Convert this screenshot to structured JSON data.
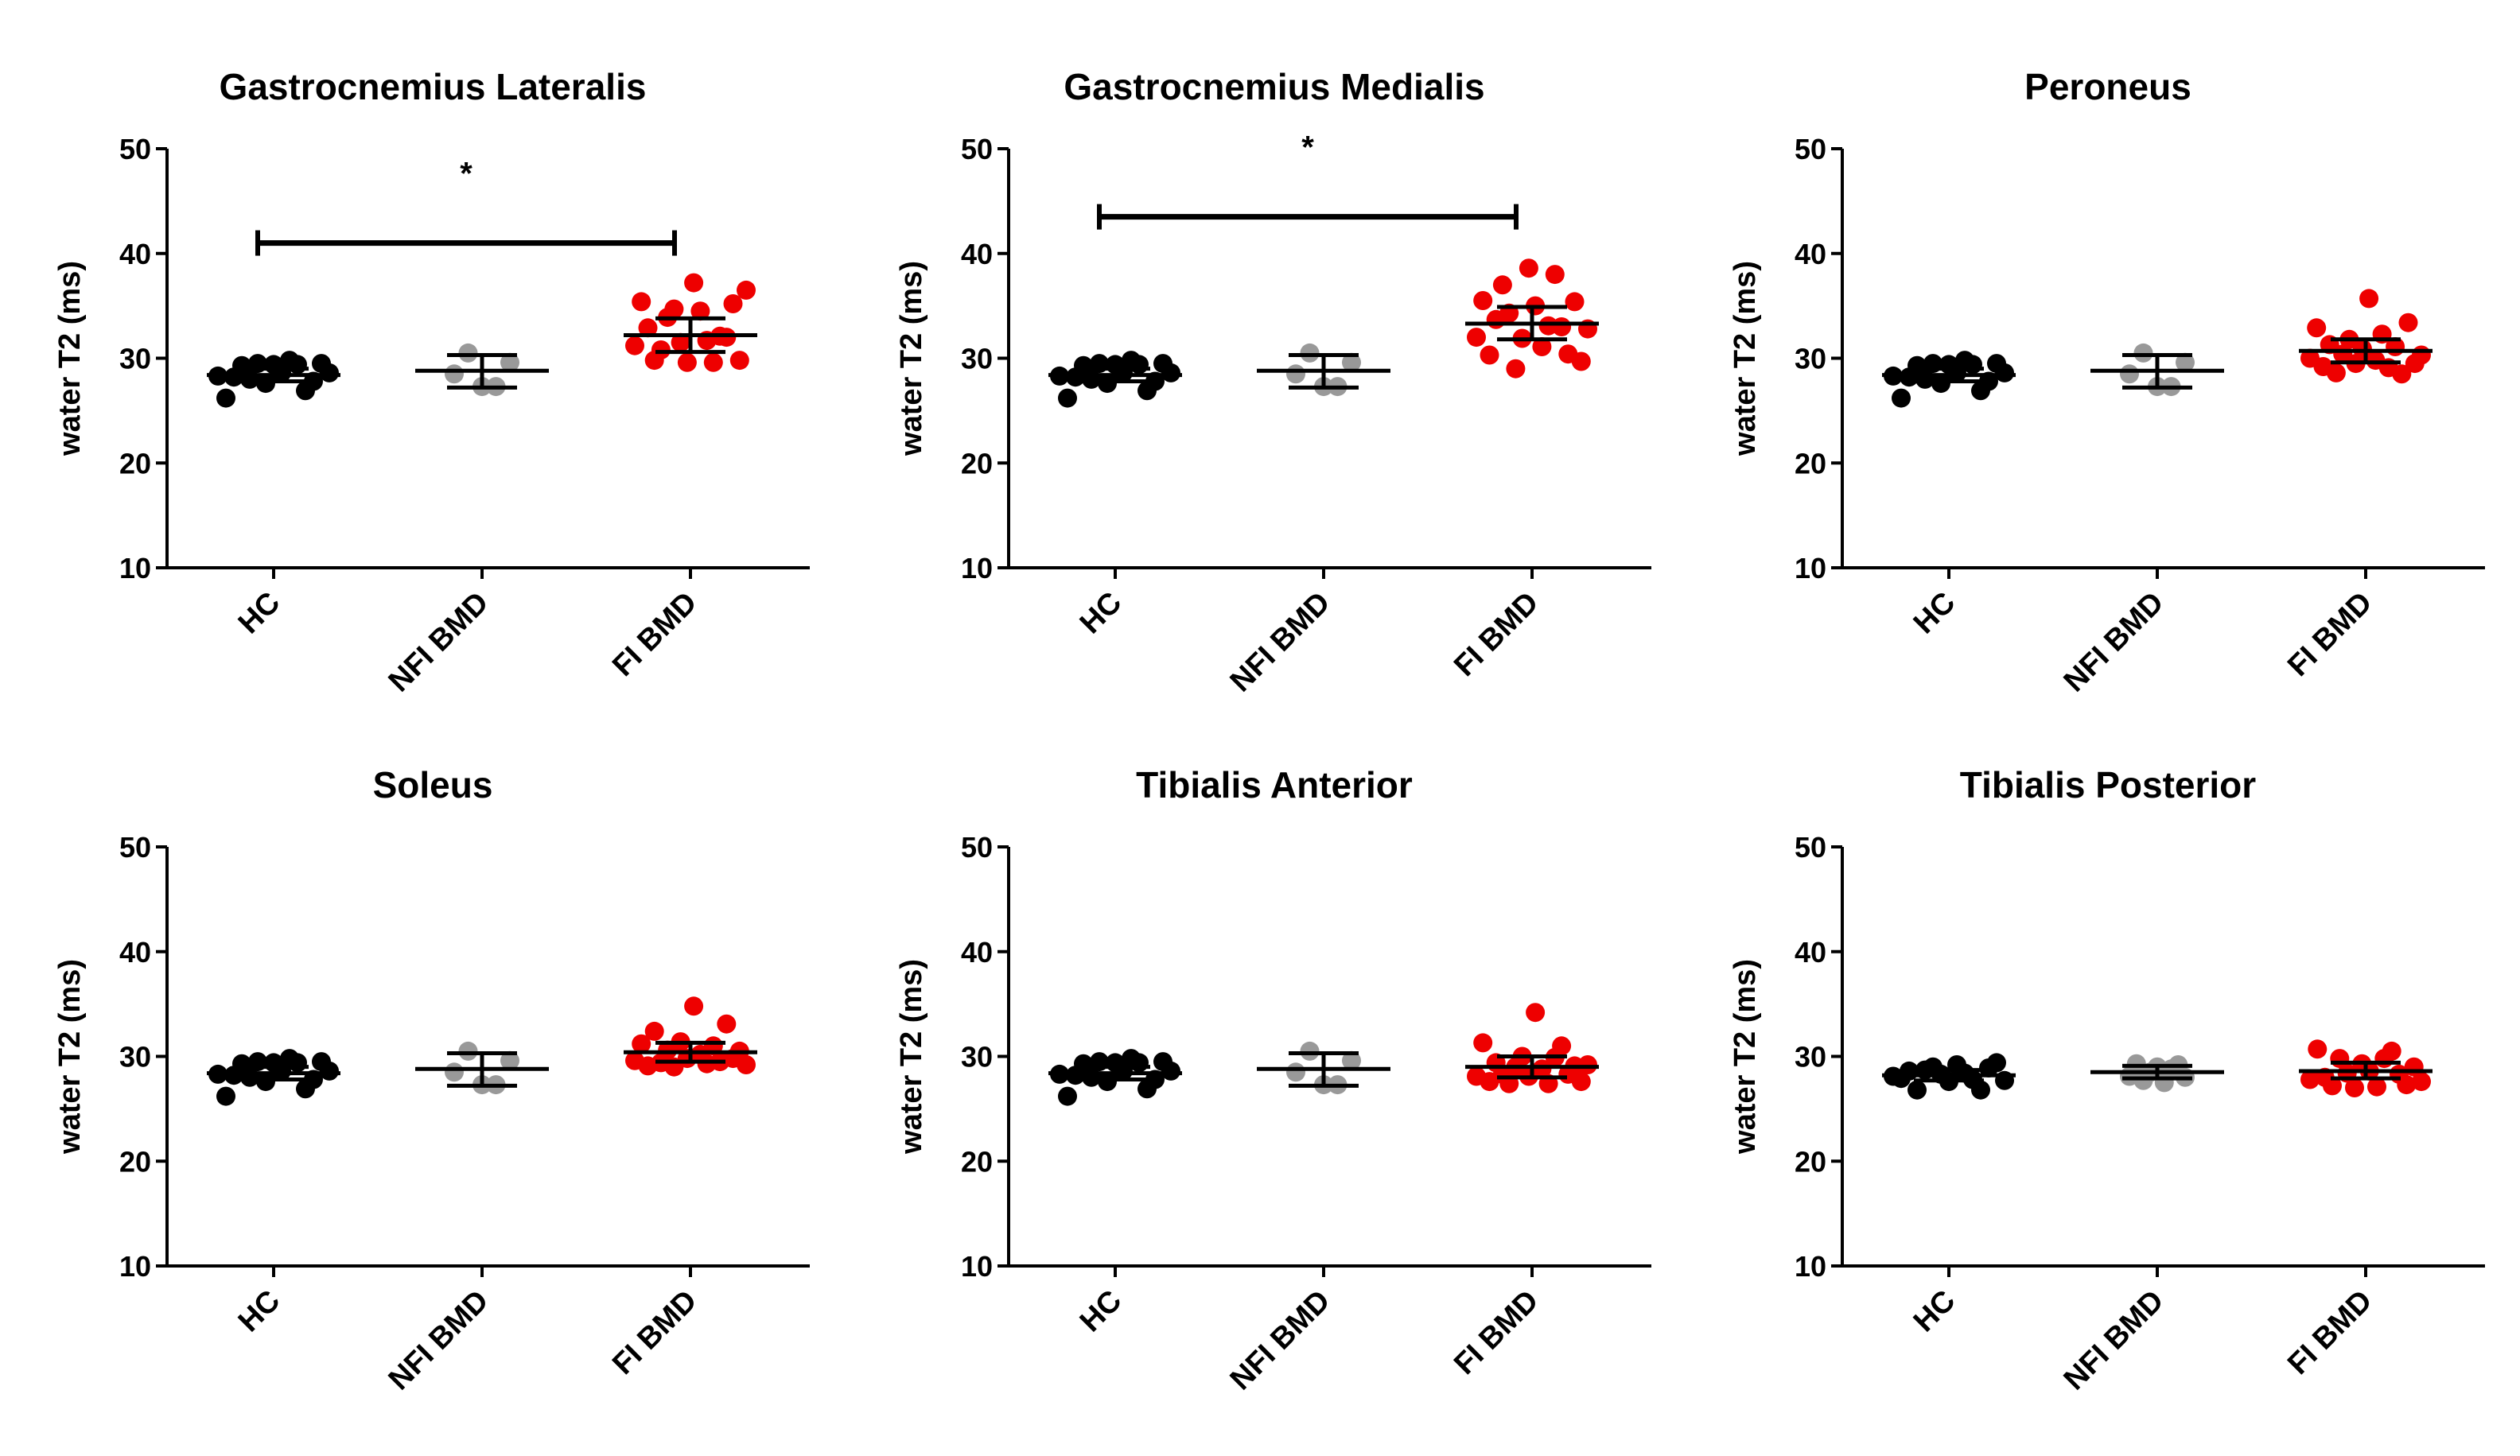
{
  "colors": {
    "HC": "#000000",
    "NFI BMD": "#999999",
    "FI BMD": "#ee0000",
    "axis": "#000000",
    "bracket": "#000000"
  },
  "chart_data": [
    {
      "type": "scatter",
      "title": "Gastrocnemius Lateralis",
      "ylabel": "water T2 (ms)",
      "ylim": [
        10,
        50
      ],
      "yticks": [
        10,
        20,
        30,
        40,
        50
      ],
      "categories": [
        "HC",
        "NFI BMD",
        "FI BMD"
      ],
      "series": [
        {
          "name": "HC",
          "mean": 28.4,
          "err": [
            27.8,
            29.0
          ],
          "points": [
            28.3,
            26.2,
            28.2,
            29.3,
            28.0,
            29.5,
            27.6,
            29.4,
            28.6,
            29.8,
            29.4,
            26.9,
            27.8,
            29.5,
            28.6
          ]
        },
        {
          "name": "NFI BMD",
          "mean": 28.8,
          "err": [
            27.2,
            30.3
          ],
          "points": [
            28.5,
            30.5,
            27.3,
            27.3,
            29.6
          ]
        },
        {
          "name": "FI BMD",
          "mean": 32.2,
          "err": [
            30.6,
            33.8
          ],
          "points": [
            31.2,
            35.4,
            32.9,
            29.8,
            30.8,
            33.9,
            34.7,
            31.5,
            29.6,
            37.2,
            34.5,
            31.7,
            29.6,
            32.1,
            32.0,
            35.2,
            29.8,
            36.5
          ]
        }
      ],
      "significance": {
        "from": "HC",
        "to": "FI BMD",
        "y": 41,
        "label": "*"
      }
    },
    {
      "type": "scatter",
      "title": "Gastrocnemius Medialis",
      "ylabel": "water T2 (ms)",
      "ylim": [
        10,
        50
      ],
      "yticks": [
        10,
        20,
        30,
        40,
        50
      ],
      "categories": [
        "HC",
        "NFI BMD",
        "FI BMD"
      ],
      "series": [
        {
          "name": "HC",
          "mean": 28.4,
          "err": [
            27.8,
            29.0
          ],
          "points": [
            28.3,
            26.2,
            28.2,
            29.3,
            28.0,
            29.5,
            27.6,
            29.4,
            28.6,
            29.8,
            29.4,
            26.9,
            27.8,
            29.5,
            28.6
          ]
        },
        {
          "name": "NFI BMD",
          "mean": 28.8,
          "err": [
            27.2,
            30.3
          ],
          "points": [
            28.5,
            30.5,
            27.3,
            27.3,
            29.6
          ]
        },
        {
          "name": "FI BMD",
          "mean": 33.3,
          "err": [
            31.8,
            34.9
          ],
          "points": [
            32.0,
            35.5,
            30.3,
            33.7,
            37.0,
            34.3,
            29.0,
            31.9,
            38.6,
            35.0,
            31.1,
            33.1,
            38.0,
            33.0,
            30.4,
            35.4,
            29.7,
            32.8
          ]
        }
      ],
      "significance": {
        "from": "HC",
        "to": "FI BMD",
        "y": 43.5,
        "label": "*"
      }
    },
    {
      "type": "scatter",
      "title": "Peroneus",
      "ylabel": "water T2 (ms)",
      "ylim": [
        10,
        50
      ],
      "yticks": [
        10,
        20,
        30,
        40,
        50
      ],
      "categories": [
        "HC",
        "NFI BMD",
        "FI BMD"
      ],
      "series": [
        {
          "name": "HC",
          "mean": 28.4,
          "err": [
            27.8,
            29.0
          ],
          "points": [
            28.3,
            26.2,
            28.2,
            29.3,
            28.0,
            29.5,
            27.6,
            29.4,
            28.6,
            29.8,
            29.4,
            26.9,
            27.8,
            29.5,
            28.6
          ]
        },
        {
          "name": "NFI BMD",
          "mean": 28.8,
          "err": [
            27.2,
            30.3
          ],
          "points": [
            28.5,
            30.5,
            27.3,
            27.3,
            29.6
          ]
        },
        {
          "name": "FI BMD",
          "mean": 30.7,
          "err": [
            29.6,
            31.8
          ],
          "points": [
            30.0,
            32.9,
            29.2,
            31.3,
            28.6,
            30.4,
            31.8,
            29.5,
            30.9,
            35.7,
            29.8,
            32.3,
            29.1,
            31.1,
            28.5,
            33.4,
            29.5,
            30.3
          ]
        }
      ]
    },
    {
      "type": "scatter",
      "title": "Soleus",
      "ylabel": "water T2 (ms)",
      "ylim": [
        10,
        50
      ],
      "yticks": [
        10,
        20,
        30,
        40,
        50
      ],
      "categories": [
        "HC",
        "NFI BMD",
        "FI BMD"
      ],
      "series": [
        {
          "name": "HC",
          "mean": 28.4,
          "err": [
            27.8,
            29.0
          ],
          "points": [
            28.3,
            26.2,
            28.2,
            29.3,
            28.0,
            29.5,
            27.6,
            29.4,
            28.6,
            29.8,
            29.4,
            26.9,
            27.8,
            29.5,
            28.6
          ]
        },
        {
          "name": "NFI BMD",
          "mean": 28.8,
          "err": [
            27.2,
            30.3
          ],
          "points": [
            28.5,
            30.5,
            27.3,
            27.3,
            29.6
          ]
        },
        {
          "name": "FI BMD",
          "mean": 30.4,
          "err": [
            29.5,
            31.3
          ],
          "points": [
            29.6,
            31.2,
            29.1,
            32.4,
            29.4,
            30.6,
            29.0,
            31.4,
            29.8,
            34.8,
            30.2,
            29.3,
            31.0,
            29.5,
            33.1,
            29.8,
            30.5,
            29.2
          ]
        }
      ]
    },
    {
      "type": "scatter",
      "title": "Tibialis Anterior",
      "ylabel": "water T2 (ms)",
      "ylim": [
        10,
        50
      ],
      "yticks": [
        10,
        20,
        30,
        40,
        50
      ],
      "categories": [
        "HC",
        "NFI BMD",
        "FI BMD"
      ],
      "series": [
        {
          "name": "HC",
          "mean": 28.4,
          "err": [
            27.8,
            29.0
          ],
          "points": [
            28.3,
            26.2,
            28.2,
            29.3,
            28.0,
            29.5,
            27.6,
            29.4,
            28.6,
            29.8,
            29.4,
            26.9,
            27.8,
            29.5,
            28.6
          ]
        },
        {
          "name": "NFI BMD",
          "mean": 28.8,
          "err": [
            27.2,
            30.3
          ],
          "points": [
            28.5,
            30.5,
            27.3,
            27.3,
            29.6
          ]
        },
        {
          "name": "FI BMD",
          "mean": 29.0,
          "err": [
            28.0,
            30.0
          ],
          "points": [
            28.1,
            31.3,
            27.6,
            29.4,
            28.3,
            27.4,
            29.0,
            30.0,
            28.1,
            34.2,
            28.8,
            27.4,
            29.9,
            31.0,
            28.3,
            29.1,
            27.6,
            29.2
          ]
        }
      ]
    },
    {
      "type": "scatter",
      "title": "Tibialis Posterior",
      "ylabel": "water T2 (ms)",
      "ylim": [
        10,
        50
      ],
      "yticks": [
        10,
        20,
        30,
        40,
        50
      ],
      "categories": [
        "HC",
        "NFI BMD",
        "FI BMD"
      ],
      "series": [
        {
          "name": "HC",
          "mean": 28.2,
          "err": [
            27.7,
            28.7
          ],
          "points": [
            28.1,
            27.9,
            28.6,
            26.8,
            28.7,
            29.0,
            28.3,
            27.6,
            29.2,
            28.4,
            27.8,
            26.8,
            28.9,
            29.4,
            27.7
          ]
        },
        {
          "name": "NFI BMD",
          "mean": 28.5,
          "err": [
            27.9,
            29.1
          ],
          "points": [
            28.1,
            29.3,
            27.7,
            28.5,
            29.0,
            27.5,
            28.8,
            29.2,
            28.0
          ]
        },
        {
          "name": "FI BMD",
          "mean": 28.6,
          "err": [
            27.9,
            29.4
          ],
          "points": [
            27.8,
            30.7,
            28.0,
            27.2,
            29.8,
            28.4,
            27.0,
            29.3,
            28.6,
            27.1,
            29.8,
            30.5,
            28.3,
            27.3,
            29.0,
            27.6
          ]
        }
      ]
    }
  ]
}
